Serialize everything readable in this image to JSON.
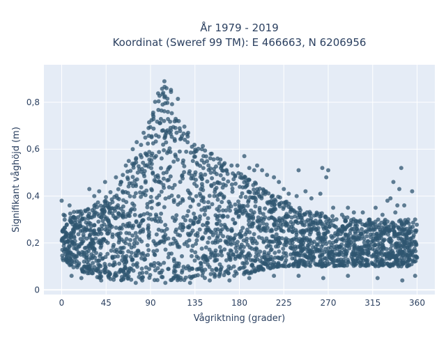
{
  "chart_data": {
    "type": "scatter",
    "title_line1": "År 1979 - 2019",
    "title_line2": "Koordinat (Sweref 99 TM): E 466663, N 6206956",
    "xlabel": "Vågriktning (grader)",
    "ylabel": "Signifikant våghöjd (m)",
    "xlim": [
      -18,
      378
    ],
    "ylim": [
      -0.02,
      0.96
    ],
    "x_ticks": [
      0,
      45,
      90,
      135,
      180,
      225,
      270,
      315,
      360
    ],
    "x_tick_labels": [
      "0",
      "45",
      "90",
      "135",
      "180",
      "225",
      "270",
      "315",
      "360"
    ],
    "y_ticks": [
      0,
      0.2,
      0.4,
      0.6,
      0.8
    ],
    "y_tick_labels": [
      "0",
      "0,2",
      "0,4",
      "0,6",
      "0,8"
    ],
    "grid": true,
    "marker_color": "#2f5570",
    "plot_background": "#e5ecf6",
    "series": [
      {
        "upper_envelope": [
          [
            0,
            0.33
          ],
          [
            10,
            0.33
          ],
          [
            20,
            0.34
          ],
          [
            30,
            0.36
          ],
          [
            40,
            0.39
          ],
          [
            50,
            0.42
          ],
          [
            60,
            0.46
          ],
          [
            70,
            0.53
          ],
          [
            80,
            0.62
          ],
          [
            88,
            0.72
          ],
          [
            95,
            0.81
          ],
          [
            100,
            0.87
          ],
          [
            105,
            0.91
          ],
          [
            110,
            0.9
          ],
          [
            115,
            0.88
          ],
          [
            120,
            0.8
          ],
          [
            125,
            0.72
          ],
          [
            130,
            0.66
          ],
          [
            140,
            0.62
          ],
          [
            150,
            0.6
          ],
          [
            160,
            0.56
          ],
          [
            170,
            0.53
          ],
          [
            180,
            0.5
          ],
          [
            190,
            0.47
          ],
          [
            200,
            0.45
          ],
          [
            210,
            0.42
          ],
          [
            220,
            0.4
          ],
          [
            230,
            0.37
          ],
          [
            240,
            0.35
          ],
          [
            250,
            0.34
          ],
          [
            260,
            0.33
          ],
          [
            270,
            0.32
          ],
          [
            280,
            0.31
          ],
          [
            290,
            0.31
          ],
          [
            300,
            0.3
          ],
          [
            310,
            0.3
          ],
          [
            320,
            0.3
          ],
          [
            330,
            0.3
          ],
          [
            340,
            0.3
          ],
          [
            350,
            0.3
          ],
          [
            360,
            0.29
          ]
        ],
        "lower_envelope": [
          [
            0,
            0.13
          ],
          [
            10,
            0.1
          ],
          [
            20,
            0.08
          ],
          [
            30,
            0.06
          ],
          [
            40,
            0.05
          ],
          [
            50,
            0.04
          ],
          [
            60,
            0.04
          ],
          [
            70,
            0.04
          ],
          [
            80,
            0.04
          ],
          [
            90,
            0.04
          ],
          [
            100,
            0.04
          ],
          [
            110,
            0.04
          ],
          [
            120,
            0.04
          ],
          [
            130,
            0.04
          ],
          [
            140,
            0.05
          ],
          [
            150,
            0.05
          ],
          [
            160,
            0.05
          ],
          [
            170,
            0.06
          ],
          [
            180,
            0.06
          ],
          [
            190,
            0.07
          ],
          [
            200,
            0.08
          ],
          [
            210,
            0.09
          ],
          [
            220,
            0.1
          ],
          [
            230,
            0.1
          ],
          [
            240,
            0.1
          ],
          [
            250,
            0.1
          ],
          [
            260,
            0.1
          ],
          [
            270,
            0.1
          ],
          [
            280,
            0.1
          ],
          [
            290,
            0.1
          ],
          [
            300,
            0.1
          ],
          [
            310,
            0.1
          ],
          [
            320,
            0.1
          ],
          [
            330,
            0.1
          ],
          [
            340,
            0.1
          ],
          [
            350,
            0.1
          ],
          [
            360,
            0.12
          ]
        ],
        "outliers": [
          [
            0,
            0.38
          ],
          [
            2,
            0.32
          ],
          [
            8,
            0.36
          ],
          [
            12,
            0.31
          ],
          [
            28,
            0.43
          ],
          [
            33,
            0.4
          ],
          [
            38,
            0.42
          ],
          [
            44,
            0.46
          ],
          [
            55,
            0.48
          ],
          [
            60,
            0.46
          ],
          [
            62,
            0.49
          ],
          [
            65,
            0.53
          ],
          [
            68,
            0.55
          ],
          [
            72,
            0.6
          ],
          [
            76,
            0.63
          ],
          [
            83,
            0.67
          ],
          [
            88,
            0.69
          ],
          [
            93,
            0.74
          ],
          [
            142,
            0.6
          ],
          [
            151,
            0.58
          ],
          [
            158,
            0.56
          ],
          [
            165,
            0.54
          ],
          [
            172,
            0.53
          ],
          [
            178,
            0.53
          ],
          [
            185,
            0.57
          ],
          [
            190,
            0.52
          ],
          [
            195,
            0.51
          ],
          [
            198,
            0.53
          ],
          [
            203,
            0.51
          ],
          [
            208,
            0.49
          ],
          [
            215,
            0.48
          ],
          [
            220,
            0.46
          ],
          [
            225,
            0.43
          ],
          [
            230,
            0.41
          ],
          [
            238,
            0.4
          ],
          [
            240,
            0.51
          ],
          [
            247,
            0.42
          ],
          [
            253,
            0.39
          ],
          [
            262,
            0.41
          ],
          [
            264,
            0.52
          ],
          [
            268,
            0.48
          ],
          [
            270,
            0.51
          ],
          [
            275,
            0.35
          ],
          [
            284,
            0.32
          ],
          [
            290,
            0.35
          ],
          [
            296,
            0.33
          ],
          [
            305,
            0.33
          ],
          [
            312,
            0.3
          ],
          [
            318,
            0.35
          ],
          [
            325,
            0.32
          ],
          [
            330,
            0.38
          ],
          [
            333,
            0.39
          ],
          [
            336,
            0.46
          ],
          [
            338,
            0.33
          ],
          [
            340,
            0.36
          ],
          [
            342,
            0.43
          ],
          [
            344,
            0.52
          ],
          [
            347,
            0.36
          ],
          [
            351,
            0.3
          ],
          [
            355,
            0.42
          ],
          [
            358,
            0.3
          ],
          [
            10,
            0.06
          ],
          [
            20,
            0.05
          ],
          [
            40,
            0.04
          ],
          [
            75,
            0.03
          ],
          [
            105,
            0.03
          ],
          [
            130,
            0.03
          ],
          [
            150,
            0.04
          ],
          [
            170,
            0.04
          ],
          [
            190,
            0.05
          ],
          [
            215,
            0.06
          ],
          [
            240,
            0.06
          ],
          [
            265,
            0.05
          ],
          [
            290,
            0.06
          ],
          [
            320,
            0.05
          ],
          [
            345,
            0.04
          ],
          [
            358,
            0.06
          ]
        ]
      }
    ]
  }
}
